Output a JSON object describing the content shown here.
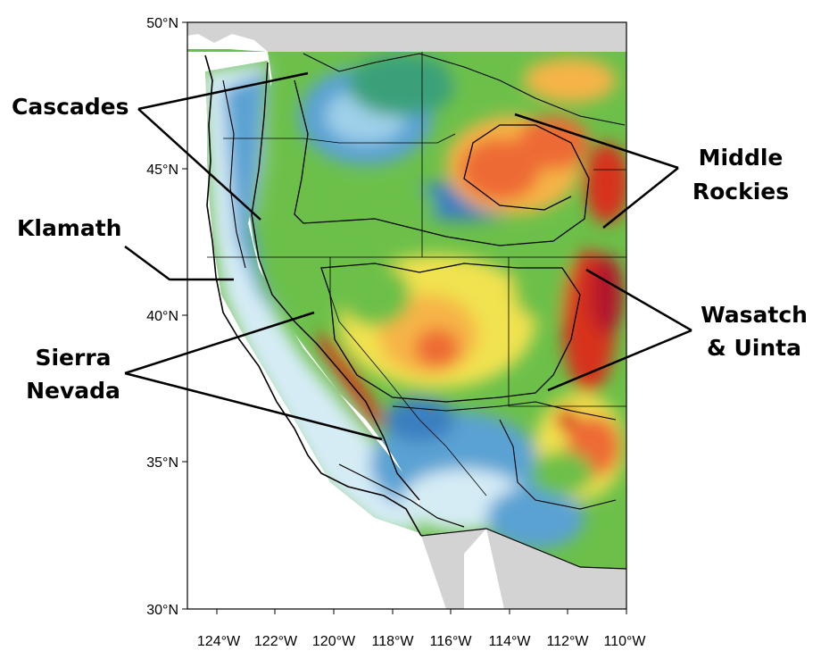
{
  "map": {
    "lat_ticks": [
      "50°N",
      "45°N",
      "40°N",
      "35°N",
      "30°N"
    ],
    "lon_ticks": [
      "124°W",
      "122°W",
      "120°W",
      "118°W",
      "116°W",
      "114°W",
      "112°W",
      "110°W"
    ],
    "extent": {
      "lon": [
        -125,
        -110
      ],
      "lat": [
        30,
        50
      ]
    },
    "colors": {
      "ocean": "#ffffff",
      "out_of_domain": "#d3d3d3",
      "scale": [
        "#ffffff",
        "#d5ecf5",
        "#9fd0ea",
        "#5aa2d3",
        "#3a7fc0",
        "#3aa07a",
        "#6cc04a",
        "#b8d84a",
        "#f1e24f",
        "#f6b447",
        "#ee6a35",
        "#d7301f",
        "#b2182b"
      ]
    }
  },
  "labels": {
    "cascades": "Cascades",
    "klamath": "Klamath",
    "sierra_1": "Sierra",
    "sierra_2": "Nevada",
    "middle_1": "Middle",
    "middle_2": "Rockies",
    "wasatch_1": "Wasatch",
    "wasatch_2": "& Uinta"
  }
}
